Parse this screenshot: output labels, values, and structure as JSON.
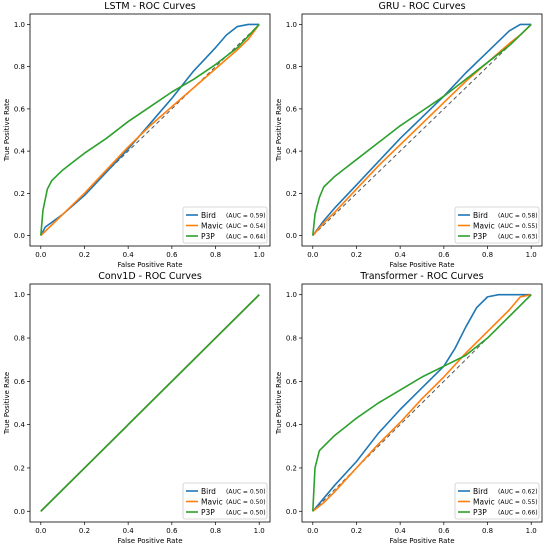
{
  "chart_data": [
    {
      "type": "line",
      "title": "LSTM - ROC Curves",
      "xlabel": "False Positive Rate",
      "ylabel": "True Positive Rate",
      "xlim": [
        0,
        1
      ],
      "ylim": [
        0,
        1
      ],
      "xticks": [
        "0.0",
        "0.2",
        "0.4",
        "0.6",
        "0.8",
        "1.0"
      ],
      "yticks": [
        "0.0",
        "0.2",
        "0.4",
        "0.6",
        "0.8",
        "1.0"
      ],
      "legend_position": "lower-right",
      "grid": false,
      "diagonal": {
        "style": "dashed",
        "color": "#555555"
      },
      "series": [
        {
          "name": "Bird",
          "auc_label": "(AUC = 0.59)",
          "color": "#1f77b4",
          "x": [
            0,
            0.02,
            0.1,
            0.2,
            0.3,
            0.4,
            0.5,
            0.6,
            0.7,
            0.8,
            0.85,
            0.9,
            0.95,
            1.0
          ],
          "y": [
            0,
            0.04,
            0.1,
            0.19,
            0.3,
            0.41,
            0.53,
            0.65,
            0.78,
            0.89,
            0.95,
            0.99,
            1.0,
            1.0
          ]
        },
        {
          "name": "Mavic",
          "auc_label": "(AUC = 0.54)",
          "color": "#ff7f0e",
          "x": [
            0,
            0.05,
            0.1,
            0.2,
            0.3,
            0.4,
            0.5,
            0.6,
            0.7,
            0.8,
            0.9,
            0.95,
            1.0
          ],
          "y": [
            0,
            0.05,
            0.1,
            0.2,
            0.31,
            0.42,
            0.52,
            0.61,
            0.7,
            0.79,
            0.88,
            0.93,
            1.0
          ]
        },
        {
          "name": "P3P",
          "auc_label": "(AUC = 0.64)",
          "color": "#2ca02c",
          "x": [
            0,
            0.01,
            0.03,
            0.05,
            0.1,
            0.15,
            0.2,
            0.3,
            0.4,
            0.5,
            0.6,
            0.7,
            0.8,
            0.9,
            1.0
          ],
          "y": [
            0,
            0.12,
            0.22,
            0.26,
            0.31,
            0.35,
            0.39,
            0.46,
            0.54,
            0.61,
            0.68,
            0.74,
            0.81,
            0.89,
            1.0
          ]
        }
      ]
    },
    {
      "type": "line",
      "title": "GRU - ROC Curves",
      "xlabel": "False Positive Rate",
      "ylabel": "True Positive Rate",
      "xlim": [
        0,
        1
      ],
      "ylim": [
        0,
        1
      ],
      "xticks": [
        "0.0",
        "0.2",
        "0.4",
        "0.6",
        "0.8",
        "1.0"
      ],
      "yticks": [
        "0.0",
        "0.2",
        "0.4",
        "0.6",
        "0.8",
        "1.0"
      ],
      "legend_position": "lower-right",
      "grid": false,
      "diagonal": {
        "style": "dashed",
        "color": "#555555"
      },
      "series": [
        {
          "name": "Bird",
          "auc_label": "(AUC = 0.58)",
          "color": "#1f77b4",
          "x": [
            0,
            0.05,
            0.1,
            0.2,
            0.3,
            0.4,
            0.5,
            0.6,
            0.7,
            0.8,
            0.9,
            0.95,
            1.0
          ],
          "y": [
            0,
            0.07,
            0.13,
            0.24,
            0.35,
            0.46,
            0.56,
            0.66,
            0.77,
            0.87,
            0.97,
            1.0,
            1.0
          ]
        },
        {
          "name": "Mavic",
          "auc_label": "(AUC = 0.55)",
          "color": "#ff7f0e",
          "x": [
            0,
            0.05,
            0.1,
            0.2,
            0.3,
            0.4,
            0.5,
            0.6,
            0.7,
            0.8,
            0.9,
            0.95,
            1.0
          ],
          "y": [
            0,
            0.06,
            0.11,
            0.22,
            0.33,
            0.43,
            0.53,
            0.63,
            0.73,
            0.82,
            0.91,
            0.95,
            1.0
          ]
        },
        {
          "name": "P3P",
          "auc_label": "(AUC = 0.63)",
          "color": "#2ca02c",
          "x": [
            0,
            0.01,
            0.03,
            0.05,
            0.1,
            0.15,
            0.2,
            0.3,
            0.4,
            0.5,
            0.6,
            0.7,
            0.8,
            0.9,
            1.0
          ],
          "y": [
            0,
            0.1,
            0.18,
            0.23,
            0.28,
            0.32,
            0.36,
            0.44,
            0.52,
            0.59,
            0.66,
            0.74,
            0.82,
            0.9,
            1.0
          ]
        }
      ]
    },
    {
      "type": "line",
      "title": "Conv1D - ROC Curves",
      "xlabel": "False Positive Rate",
      "ylabel": "True Positive Rate",
      "xlim": [
        0,
        1
      ],
      "ylim": [
        0,
        1
      ],
      "xticks": [
        "0.0",
        "0.2",
        "0.4",
        "0.6",
        "0.8",
        "1.0"
      ],
      "yticks": [
        "0.0",
        "0.2",
        "0.4",
        "0.6",
        "0.8",
        "1.0"
      ],
      "legend_position": "lower-right",
      "grid": false,
      "diagonal": {
        "style": "dashed",
        "color": "#555555"
      },
      "series": [
        {
          "name": "Bird",
          "auc_label": "(AUC = 0.50)",
          "color": "#1f77b4",
          "x": [
            0,
            1
          ],
          "y": [
            0,
            1
          ]
        },
        {
          "name": "Mavic",
          "auc_label": "(AUC = 0.50)",
          "color": "#ff7f0e",
          "x": [
            0,
            1
          ],
          "y": [
            0,
            1
          ]
        },
        {
          "name": "P3P",
          "auc_label": "(AUC = 0.50)",
          "color": "#2ca02c",
          "x": [
            0,
            1
          ],
          "y": [
            0,
            1
          ]
        }
      ]
    },
    {
      "type": "line",
      "title": "Transformer - ROC Curves",
      "xlabel": "False Positive Rate",
      "ylabel": "True Positive Rate",
      "xlim": [
        0,
        1
      ],
      "ylim": [
        0,
        1
      ],
      "xticks": [
        "0.0",
        "0.2",
        "0.4",
        "0.6",
        "0.8",
        "1.0"
      ],
      "yticks": [
        "0.0",
        "0.2",
        "0.4",
        "0.6",
        "0.8",
        "1.0"
      ],
      "legend_position": "lower-right",
      "grid": false,
      "diagonal": {
        "style": "dashed",
        "color": "#555555"
      },
      "series": [
        {
          "name": "Bird",
          "auc_label": "(AUC = 0.62)",
          "color": "#1f77b4",
          "x": [
            0,
            0.05,
            0.1,
            0.2,
            0.3,
            0.4,
            0.5,
            0.6,
            0.65,
            0.7,
            0.75,
            0.8,
            0.85,
            0.9,
            1.0
          ],
          "y": [
            0,
            0.06,
            0.12,
            0.23,
            0.36,
            0.47,
            0.57,
            0.67,
            0.75,
            0.85,
            0.94,
            0.99,
            1.0,
            1.0,
            1.0
          ]
        },
        {
          "name": "Mavic",
          "auc_label": "(AUC = 0.55)",
          "color": "#ff7f0e",
          "x": [
            0,
            0.05,
            0.1,
            0.2,
            0.3,
            0.4,
            0.5,
            0.6,
            0.7,
            0.8,
            0.9,
            0.95,
            1.0
          ],
          "y": [
            0,
            0.04,
            0.09,
            0.2,
            0.31,
            0.41,
            0.52,
            0.62,
            0.73,
            0.83,
            0.93,
            0.99,
            1.0
          ]
        },
        {
          "name": "P3P",
          "auc_label": "(AUC = 0.66)",
          "color": "#2ca02c",
          "x": [
            0,
            0.005,
            0.01,
            0.03,
            0.05,
            0.1,
            0.15,
            0.2,
            0.3,
            0.4,
            0.5,
            0.6,
            0.7,
            0.8,
            0.9,
            1.0
          ],
          "y": [
            0,
            0.1,
            0.2,
            0.28,
            0.3,
            0.35,
            0.39,
            0.43,
            0.5,
            0.56,
            0.62,
            0.67,
            0.72,
            0.8,
            0.9,
            1.0
          ]
        }
      ]
    }
  ]
}
